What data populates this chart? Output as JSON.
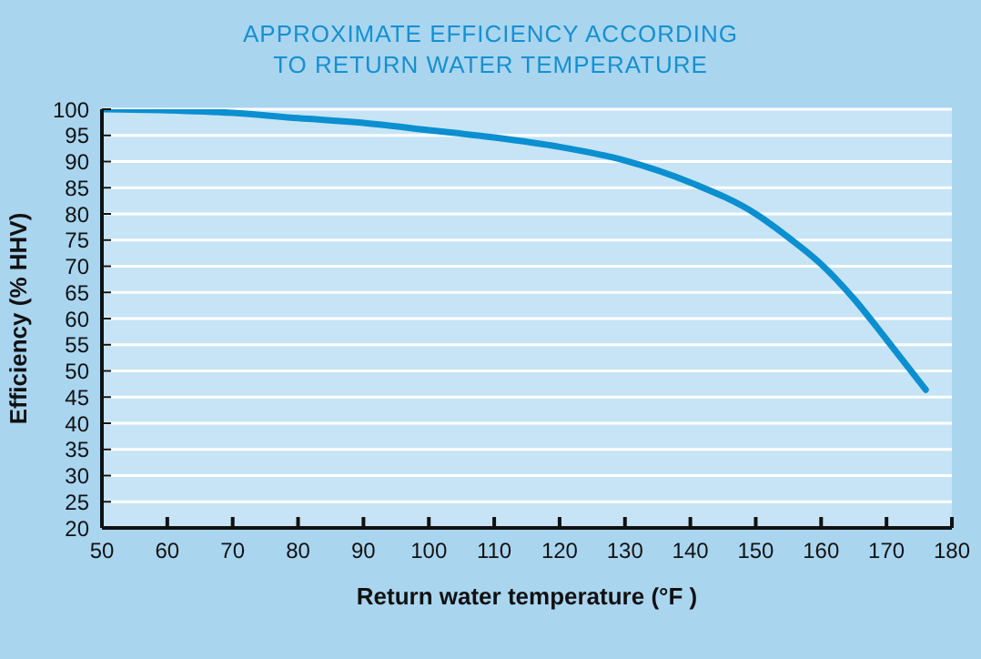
{
  "chart_data": {
    "type": "line",
    "title": "APPROXIMATE EFFICIENCY ACCORDING\nTO RETURN WATER TEMPERATURE",
    "xlabel": "Return water temperature  (°F )",
    "ylabel": "Efficiency (% HHV)",
    "x": [
      50,
      60,
      70,
      80,
      90,
      100,
      110,
      120,
      130,
      140,
      150,
      155,
      160,
      165,
      170,
      176
    ],
    "series": [
      {
        "color": "#0a8fd0",
        "values": [
          100,
          99.8,
          99.3,
          98.3,
          97.4,
          96,
          94.6,
          92.8,
          90.2,
          86,
          80,
          75.5,
          70.4,
          63.8,
          56,
          46.4
        ]
      }
    ],
    "xlim": [
      50,
      180
    ],
    "xticks": [
      50,
      60,
      70,
      80,
      90,
      100,
      110,
      120,
      130,
      140,
      150,
      160,
      170,
      180
    ],
    "ylim": [
      20,
      100
    ],
    "yticks": [
      20,
      25,
      30,
      35,
      40,
      45,
      50,
      55,
      60,
      65,
      70,
      75,
      80,
      85,
      90,
      95,
      100
    ],
    "grid": "y",
    "marker": "none",
    "line_style": "solid"
  }
}
